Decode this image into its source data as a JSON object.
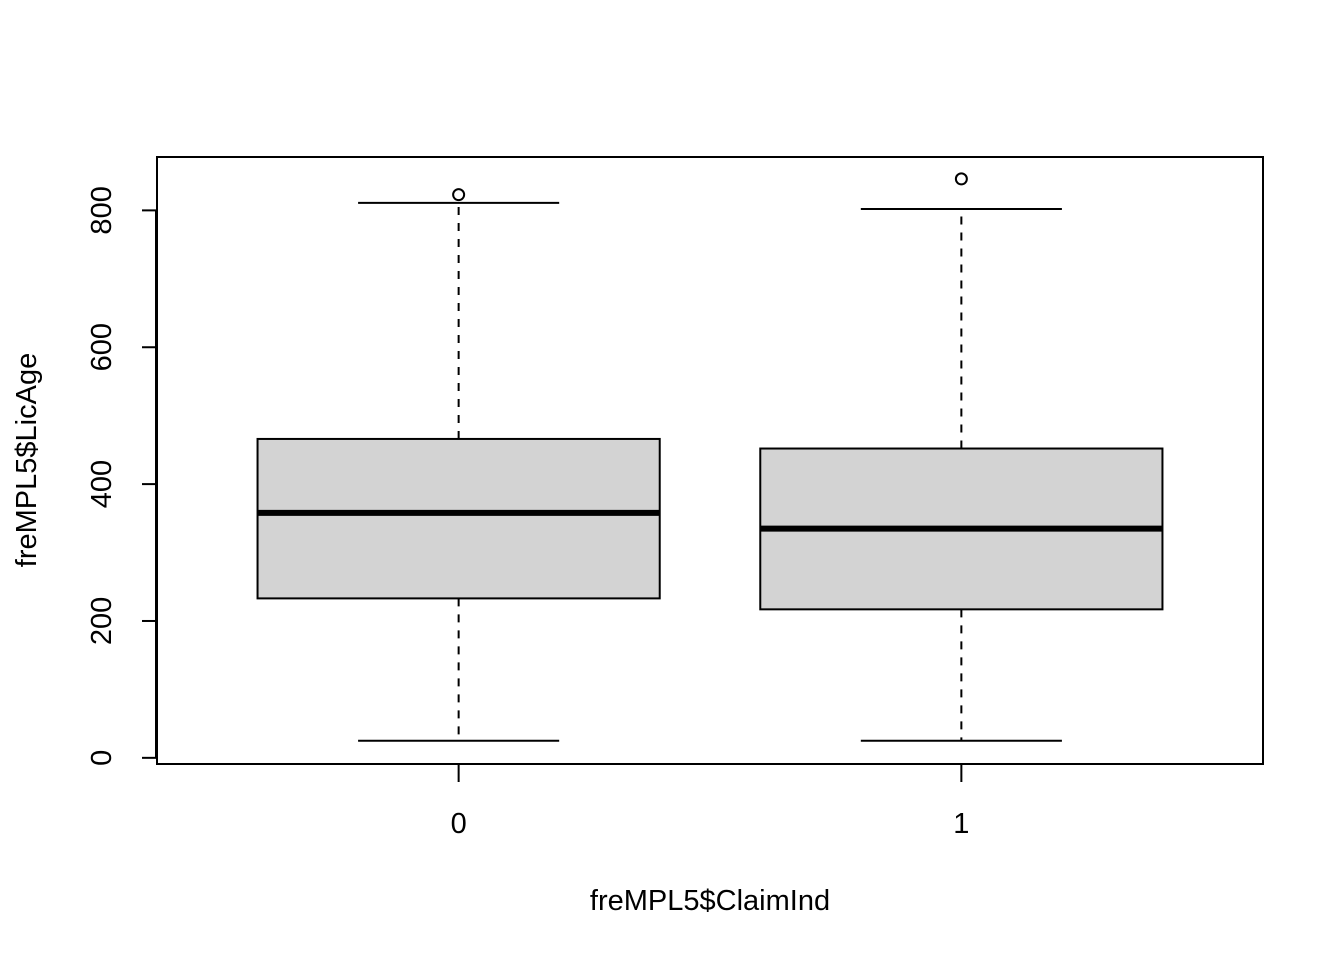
{
  "chart_data": {
    "type": "box",
    "xlabel": "freMPL5$ClaimInd",
    "ylabel": "freMPL5$LicAge",
    "categories": [
      "0",
      "1"
    ],
    "y_ticks": [
      "0",
      "200",
      "400",
      "600",
      "800"
    ],
    "ylim": [
      -9,
      878
    ],
    "grid": false,
    "box_fill": "#d3d3d3",
    "series": [
      {
        "category": "0",
        "whisker_low": 25,
        "q1": 233,
        "median": 358,
        "q3": 466,
        "whisker_high": 811,
        "outliers": [
          823
        ]
      },
      {
        "category": "1",
        "whisker_low": 25,
        "q1": 217,
        "median": 335,
        "q3": 452,
        "whisker_high": 802,
        "outliers": [
          846
        ]
      }
    ]
  }
}
